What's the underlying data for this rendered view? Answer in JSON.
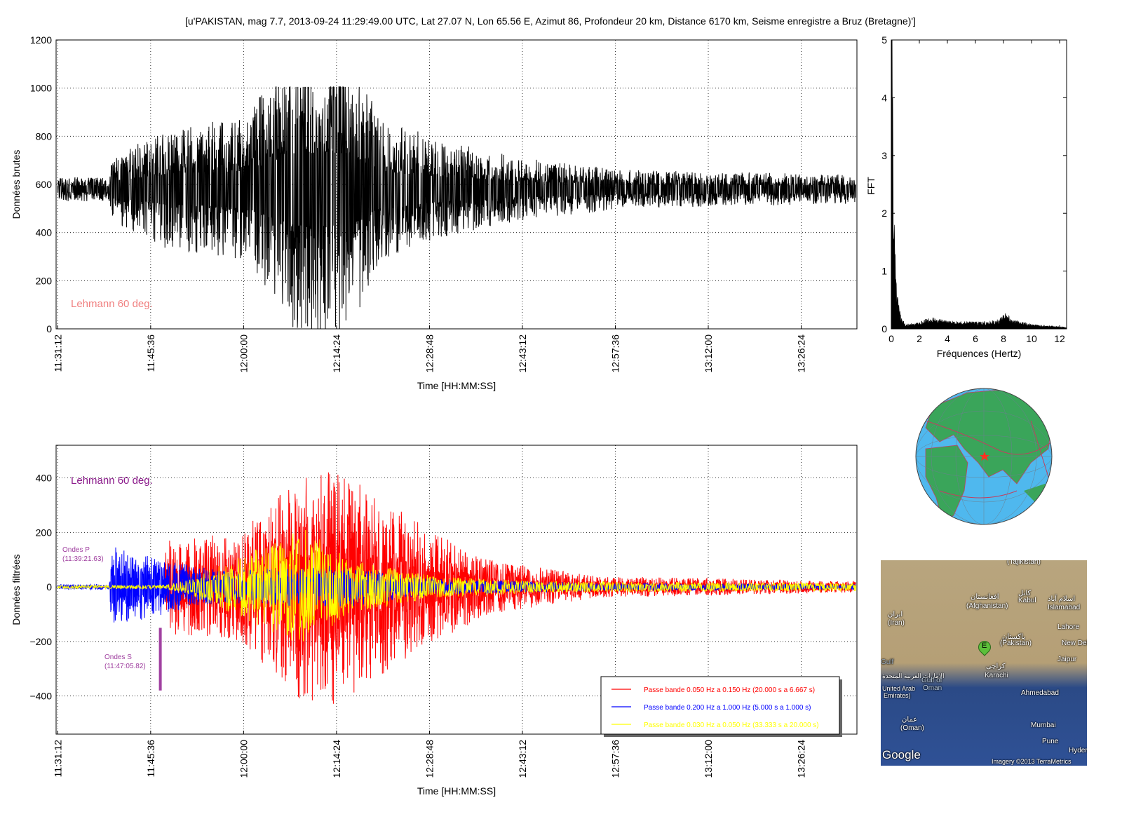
{
  "title": "[u'PAKISTAN, mag 7.7, 2013-09-24 11:29:49.00 UTC, Lat 27.07 N, Lon 65.56 E, Azimut 86, Profondeur 20 km, Distance 6170 km, Seisme enregistre a Bruz (Bretagne)']",
  "chart_data": [
    {
      "type": "line",
      "id": "raw",
      "ylabel": "Données brutes",
      "xlabel": "Time [HH:MM:SS]",
      "ylim": [
        0,
        1200
      ],
      "yticks": [
        "0",
        "200",
        "400",
        "600",
        "800",
        "1000",
        "1200"
      ],
      "xlim_seconds_from_113112": [
        -15,
        7430
      ],
      "xticks": [
        "11:31:12",
        "11:45:36",
        "12:00:00",
        "12:14:24",
        "12:28:48",
        "12:43:12",
        "12:57:36",
        "13:12:00",
        "13:26:24"
      ],
      "annotation": "Lehmann 60 deg.",
      "annotation_color": "#f08080",
      "series": [
        {
          "name": "raw",
          "color": "#000000",
          "mean": 580,
          "clip": [
            0,
            1005
          ],
          "envelope": [
            [
              0,
              50
            ],
            [
              480,
              50
            ],
            [
              500,
              130
            ],
            [
              1000,
              250
            ],
            [
              1750,
              300
            ],
            [
              2200,
              600
            ],
            [
              2700,
              600
            ],
            [
              3000,
              300
            ],
            [
              3600,
              200
            ],
            [
              4300,
              130
            ],
            [
              5300,
              80
            ],
            [
              7430,
              60
            ]
          ]
        }
      ],
      "grid": true
    },
    {
      "type": "line",
      "id": "fft",
      "ylabel": "FFT",
      "xlabel": "Fréquences (Hertz)",
      "xlim": [
        0,
        12.5
      ],
      "ylim": [
        0,
        5
      ],
      "xticks": [
        "0",
        "2",
        "4",
        "6",
        "8",
        "10",
        "12"
      ],
      "yticks": [
        "0",
        "1",
        "2",
        "3",
        "4",
        "5"
      ],
      "envelope": [
        [
          0,
          5
        ],
        [
          0.05,
          4.8
        ],
        [
          0.1,
          3
        ],
        [
          0.2,
          1.4
        ],
        [
          0.4,
          0.5
        ],
        [
          0.7,
          0.15
        ],
        [
          1,
          0.06
        ],
        [
          2,
          0.08
        ],
        [
          2.8,
          0.15
        ],
        [
          4,
          0.1
        ],
        [
          6,
          0.09
        ],
        [
          7.5,
          0.11
        ],
        [
          8.2,
          0.22
        ],
        [
          8.6,
          0.12
        ],
        [
          10,
          0.06
        ],
        [
          12.5,
          0.02
        ]
      ]
    },
    {
      "type": "line",
      "id": "filtered",
      "ylabel": "Données filtrées",
      "xlabel": "Time [HH:MM:SS]",
      "ylim": [
        -540,
        520
      ],
      "yticks": [
        "−400",
        "−200",
        "0",
        "200",
        "400"
      ],
      "xlim_seconds_from_113112": [
        -15,
        7430
      ],
      "xticks": [
        "11:31:12",
        "11:45:36",
        "12:00:00",
        "12:14:24",
        "12:28:48",
        "12:43:12",
        "12:57:36",
        "13:12:00",
        "13:26:24"
      ],
      "annotation": "Lehmann 60 deg.",
      "annotation_color": "#8b1a8b",
      "series": [
        {
          "name": "Passe bande 0.050 Hz a 0.150 Hz (20.000 s a 6.667 s)",
          "color": "#ff0000",
          "envelope": [
            [
              0,
              0
            ],
            [
              980,
              0
            ],
            [
              1000,
              170
            ],
            [
              1700,
              200
            ],
            [
              2300,
              430
            ],
            [
              2600,
              430
            ],
            [
              3300,
              250
            ],
            [
              4000,
              100
            ],
            [
              5000,
              40
            ],
            [
              7430,
              20
            ]
          ]
        },
        {
          "name": "Passe bande 0.200 Hz a 1.000 Hz (5.000 s a 1.000 s)",
          "color": "#0000ff",
          "envelope": [
            [
              0,
              10
            ],
            [
              480,
              10
            ],
            [
              500,
              150
            ],
            [
              900,
              110
            ],
            [
              1500,
              60
            ],
            [
              2600,
              80
            ],
            [
              3500,
              30
            ],
            [
              5000,
              15
            ],
            [
              7430,
              10
            ]
          ]
        },
        {
          "name": "Passe bande 0.030 Hz a 0.050 Hz (33.333 s a 20.000 s)",
          "color": "#ffff00",
          "envelope": [
            [
              0,
              5
            ],
            [
              1000,
              8
            ],
            [
              1200,
              25
            ],
            [
              1900,
              150
            ],
            [
              2300,
              220
            ],
            [
              2700,
              100
            ],
            [
              3500,
              40
            ],
            [
              4500,
              20
            ],
            [
              7430,
              15
            ]
          ]
        }
      ],
      "markers": [
        {
          "label": "Ondes P",
          "time": "(11:39:21.63)",
          "t": 489.6
        },
        {
          "label": "Ondes S",
          "time": "(11:47:05.82)",
          "t": 953.8,
          "y": [
            -150,
            -380
          ]
        }
      ],
      "legend_placement": "lower-right",
      "grid": true
    }
  ],
  "map": {
    "labels": [
      "(Tajikistan)",
      "افغانستان",
      "(Afghanistan)",
      "کابل",
      "Kabul",
      "اسلام آباد",
      "Islamabad",
      "ایران",
      "(Iran)",
      "پاکستان",
      "(Pakistan)",
      "Lahore",
      "New Delhi",
      "Jaipur",
      "Gulf",
      "الإمارات العربية المتحدة",
      "United Arab",
      "Emirates)",
      "Gulf of",
      "Oman",
      "کراچی",
      "Karachi",
      "Ahmedabad",
      "عمان",
      "(Oman)",
      "Mumbai",
      "Pune",
      "Hyderabad"
    ],
    "marker": "E",
    "logo": "Google",
    "credit": "Imagery ©2013 TerraMetrics"
  }
}
